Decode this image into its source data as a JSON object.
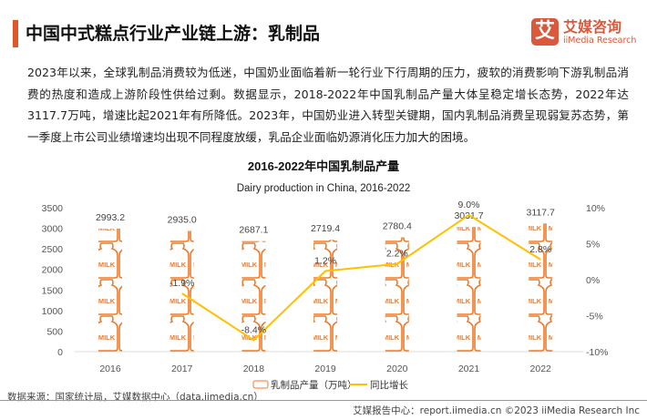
{
  "header": {
    "title": "中国中式糕点行业产业链上游：乳制品",
    "logo_cn": "艾媒咨询",
    "logo_en": "iiMedia Research",
    "logo_mark": "艾"
  },
  "paragraph": "2023年以来，全球乳制品消费较为低迷，中国奶业面临着新一轮行业下行周期的压力，疲软的消费影响下游乳制品消费的热度和造成上游阶段性供给过剩。数据显示，2018-2022年中国乳制品产量大体呈稳定增长态势，2022年达3117.7万吨，增速比起2021年有所降低。2023年，中国奶业进入转型关键期，国内乳制品消费呈现弱复苏态势，第一季度上市公司业绩增速均出现不同程度放缓，乳品企业面临奶源消化压力加大的困境。",
  "chart_data": {
    "type": "bar",
    "title": "2016-2022年中国乳制品产量",
    "subtitle": "Dairy production in China, 2016-2022",
    "categories": [
      "2016",
      "2017",
      "2018",
      "2019",
      "2020",
      "2021",
      "2022"
    ],
    "series": [
      {
        "name": "乳制品产量（万吨）",
        "type": "bar",
        "axis": "left",
        "values": [
          2993.2,
          2935.0,
          2687.1,
          2719.4,
          2780.4,
          3031.7,
          3117.7
        ],
        "labels": [
          "2993.2",
          "2935.0",
          "2687.1",
          "2719.4",
          "2780.4",
          "3031.7",
          "3117.7"
        ]
      },
      {
        "name": "同比增长",
        "type": "line",
        "axis": "right",
        "values": [
          null,
          -1.9,
          -8.4,
          1.2,
          2.2,
          9.0,
          2.8
        ],
        "labels": [
          "",
          "-1.9%",
          "-8.4%",
          "1.2%",
          "2.2%",
          "9.0%",
          "2.8%"
        ]
      }
    ],
    "y_left": {
      "range": [
        0,
        3500
      ],
      "ticks": [
        "0",
        "500",
        "1000",
        "1500",
        "2000",
        "2500",
        "3000",
        "3500"
      ]
    },
    "y_right": {
      "range": [
        -10,
        10
      ],
      "ticks": [
        "-10%",
        "-5%",
        "0%",
        "5%",
        "10%"
      ]
    },
    "bar_icon_text": "MILK",
    "legend_position": "bottom",
    "colors": {
      "bar": "#f07a2a",
      "line": "#ffc000"
    }
  },
  "footer": {
    "source": "数据来源：国家统计局，艾媒数据中心（data.iimedia.cn）",
    "copyright": "艾媒报告中心：report.iimedia.cn  ©2023  iiMedia Research  Inc"
  }
}
